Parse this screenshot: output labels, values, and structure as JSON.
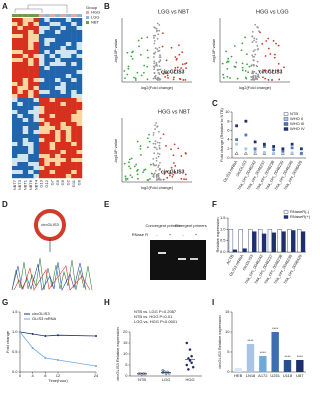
{
  "panel_a": {
    "letter": "A",
    "legend_title": "Group",
    "legend": [
      {
        "name": "HGG",
        "color": "#e3a8a8"
      },
      {
        "name": "LGG",
        "color": "#8fb4d6"
      },
      {
        "name": "NBT",
        "color": "#6c9a4f"
      }
    ],
    "samples": [
      "NBT7",
      "NBT3",
      "NBT1",
      "NBT6",
      "NBT4",
      "G13",
      "G12",
      "G7",
      "G5",
      "G9",
      "G2",
      "G11",
      "G6"
    ]
  },
  "panel_b": {
    "letter": "B",
    "plots": [
      {
        "title": "LGG vs NBT"
      },
      {
        "title": "HGG vs LGG"
      },
      {
        "title": "HGG vs NBT"
      }
    ],
    "x_label": "log2(Fold change)",
    "y_label": "-log10P value",
    "highlight": "circGLIS3"
  },
  "panel_c": {
    "letter": "C",
    "chart": {
      "type": "scatter",
      "y_label": "Fold change (Relative to NTB)",
      "categories": [
        "GLIS3 mRNA",
        "circGLIS3",
        "hsa_circ_0046242",
        "hsa_circ_0046237",
        "hsa_circ_0046238",
        "hsa_circ_0046239",
        "hsa_circ_0046240",
        "hsa_circ_0096429"
      ],
      "series": [
        {
          "name": "NTB",
          "color": "#ffffff",
          "values": [
            1,
            1,
            1,
            1,
            1,
            1,
            1,
            1
          ]
        },
        {
          "name": "WHO II",
          "color": "#a9c4e4",
          "values": [
            3,
            2,
            1.5,
            1.2,
            1,
            1.3,
            1.1,
            0.9
          ]
        },
        {
          "name": "WHO III",
          "color": "#4f79b5",
          "values": [
            4,
            5,
            2,
            2.5,
            1.8,
            1.5,
            2.2,
            1
          ]
        },
        {
          "name": "WHO IV",
          "color": "#1f2f6b",
          "values": [
            7,
            8,
            3.5,
            3,
            2.5,
            2,
            3,
            2
          ]
        }
      ],
      "ylim": [
        0,
        10
      ],
      "yticks": [
        0,
        2,
        4,
        6,
        8,
        10
      ]
    }
  },
  "panel_d": {
    "letter": "D",
    "circle_label": "circGLIS3"
  },
  "panel_e": {
    "letter": "E",
    "groups": [
      "Convergent primers",
      "Divergent primers"
    ],
    "row_label": "RNase R",
    "lanes": [
      "-",
      "+",
      "-",
      "+"
    ]
  },
  "panel_f": {
    "letter": "F",
    "chart": {
      "type": "bar",
      "y_label": "Relative expression",
      "categories": [
        "ACTB",
        "GLIS3 mRNA",
        "circGLIS3",
        "hsa_circ_0046242",
        "hsa_circ_0046237",
        "hsa_circ_0046238",
        "hsa_circ_0046239",
        "hsa_circ_0096429"
      ],
      "series": [
        {
          "name": "RNaseR(-)",
          "color": "#ffffff",
          "values": [
            1,
            1,
            1,
            1,
            1,
            1,
            1,
            1
          ]
        },
        {
          "name": "RNaseR(+)",
          "color": "#1f2f6b",
          "values": [
            0.1,
            0.15,
            0.9,
            0.8,
            0.85,
            0.9,
            0.95,
            0.9
          ]
        }
      ],
      "ylim": [
        0,
        1.5
      ],
      "yticks": [
        {
          "value": 0,
          "label": "0.0"
        },
        {
          "value": 0.5,
          "label": "0.5"
        },
        {
          "value": 1,
          "label": "1.0"
        },
        {
          "value": 1.5,
          "label": "1.5"
        }
      ]
    }
  },
  "panel_g": {
    "letter": "G",
    "chart": {
      "type": "line",
      "x_label": "Time(hour)",
      "y_label": "Fold change",
      "x": [
        0,
        4,
        8,
        12,
        24
      ],
      "series": [
        {
          "name": "circGLIS3",
          "color": "#1f2f6b",
          "values": [
            1,
            0.95,
            0.9,
            0.92,
            0.9
          ]
        },
        {
          "name": "GLIS3 mRNA",
          "color": "#6fa8dc",
          "values": [
            1,
            0.6,
            0.35,
            0.3,
            0.15
          ]
        }
      ],
      "xlim": [
        0,
        24
      ],
      "xticks": [
        0,
        4,
        8,
        12,
        24
      ],
      "ylim": [
        0,
        1.5
      ],
      "yticks": [
        {
          "value": 0,
          "label": "0.0"
        },
        {
          "value": 0.5,
          "label": "0.5"
        },
        {
          "value": 1,
          "label": "1.0"
        },
        {
          "value": 1.5,
          "label": "1.5"
        }
      ]
    }
  },
  "panel_h": {
    "letter": "H",
    "annotations": [
      "NTB vs. LGG P=0.2087",
      "NTB vs. HGG P=0.01",
      "LGG vs. HGG P<0.0001"
    ],
    "chart": {
      "type": "dot",
      "y_label": "circGLIS3 Relative expression",
      "categories": [
        "NTB",
        "LGG",
        "HGG"
      ],
      "colors": [
        "#ffffff",
        "#a9c4e4",
        "#1f2f6b"
      ],
      "values": [
        1,
        1.6,
        7.6
      ],
      "points": [
        [
          1,
          1.2,
          0.8,
          1.1,
          0.9
        ],
        [
          1.5,
          2,
          1,
          1.8,
          1.2,
          2.5
        ],
        [
          5,
          8,
          12,
          6,
          4,
          15,
          3,
          7,
          9
        ]
      ],
      "ylim": [
        0,
        20
      ],
      "yticks": [
        0,
        5,
        10,
        15,
        20
      ]
    }
  },
  "panel_i": {
    "letter": "I",
    "chart": {
      "type": "bar",
      "y_label": "circGLIS3 Relative expression",
      "categories": [
        "HEB",
        "LN18",
        "A172",
        "U251",
        "U118",
        "U87"
      ],
      "colors": [
        "#dbe7f4",
        "#a9c4e4",
        "#6fa8dc",
        "#3d6fb0",
        "#2a4f8f",
        "#1f2f6b"
      ],
      "values": [
        1,
        7,
        4,
        10,
        3,
        3
      ],
      "significance": [
        null,
        "****",
        "****",
        "****",
        "****",
        "****"
      ],
      "ylim": [
        0,
        15
      ],
      "yticks": [
        0,
        5,
        10,
        15
      ]
    }
  }
}
